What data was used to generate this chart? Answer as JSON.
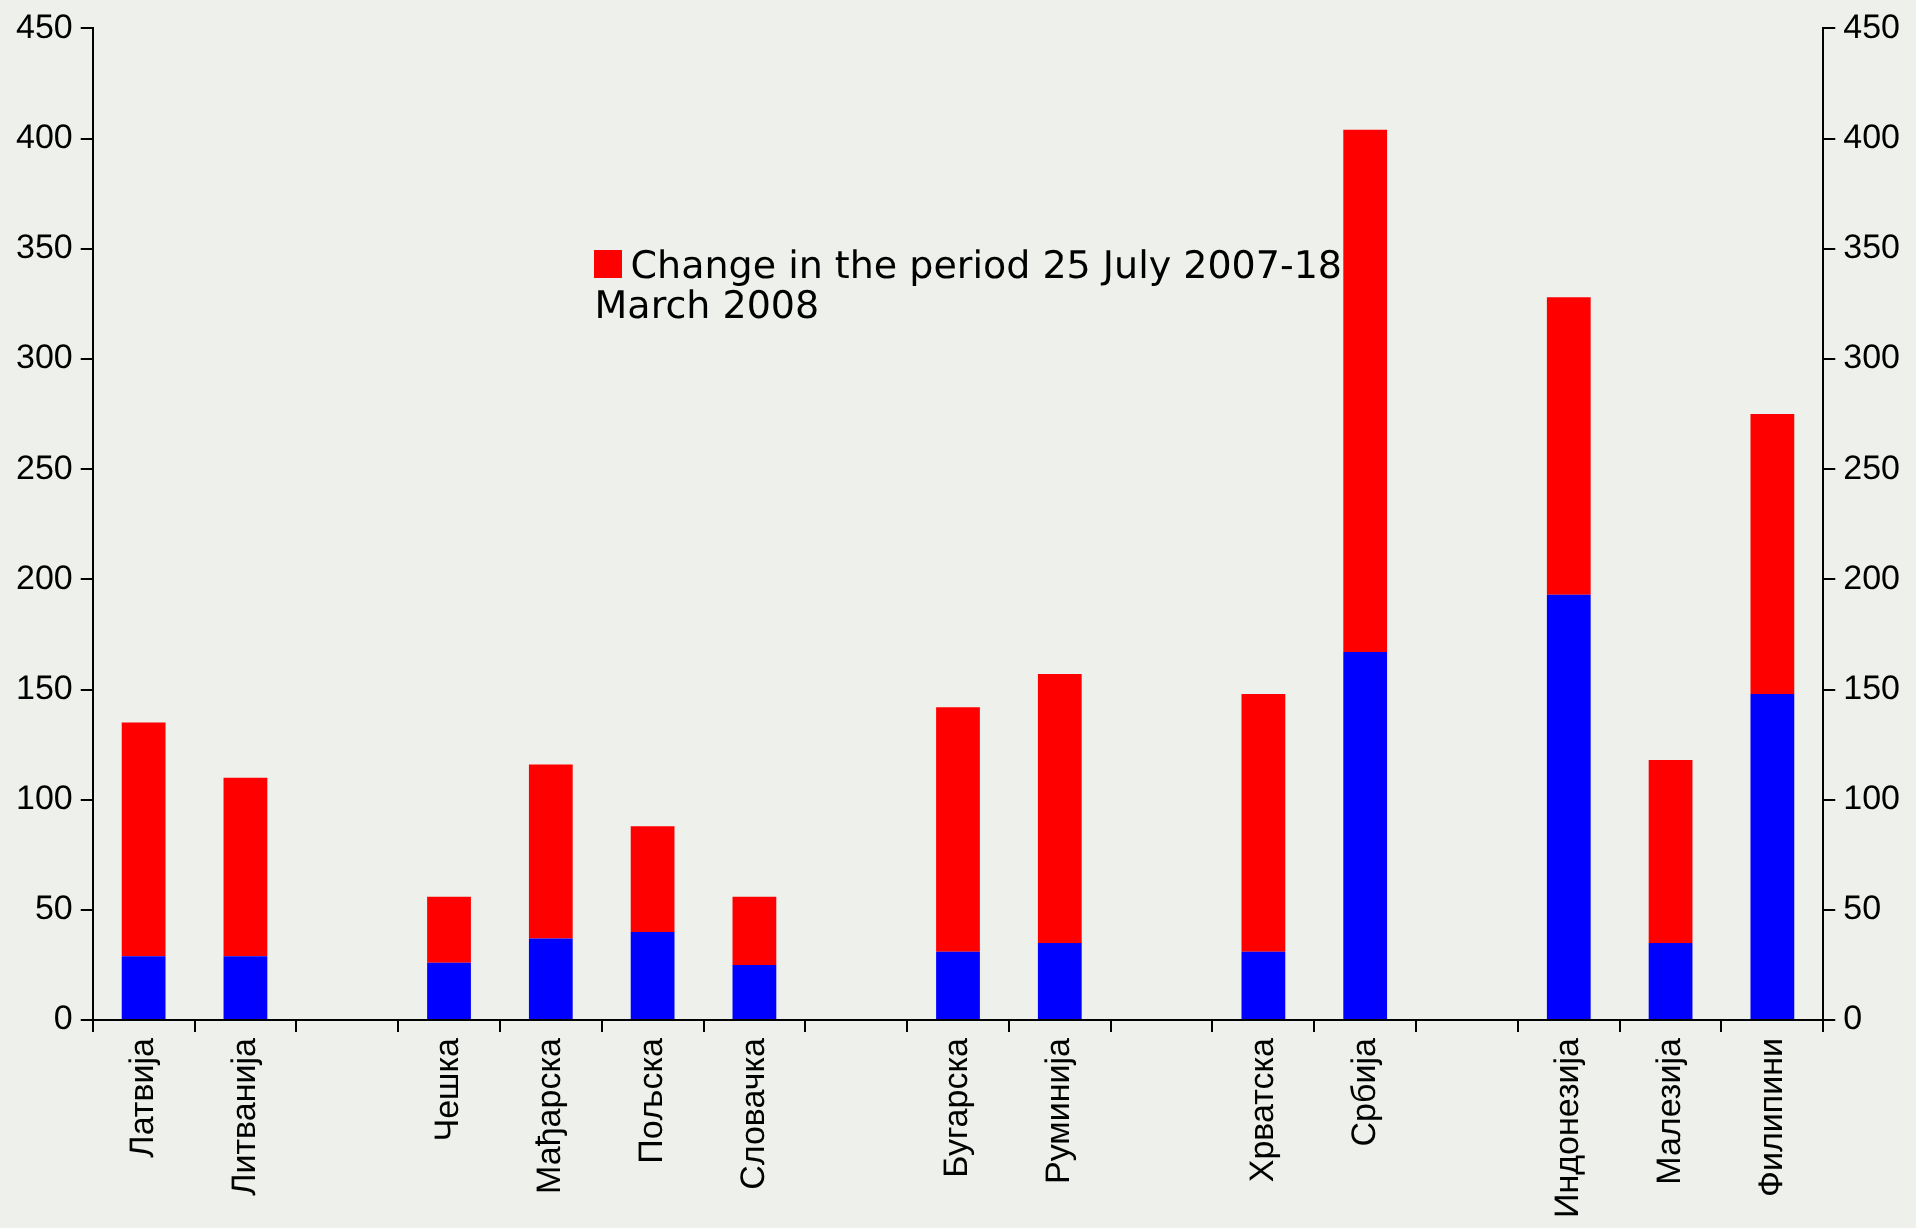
{
  "chart_data": {
    "type": "bar",
    "stacked": true,
    "categories": [
      "Латвија",
      "Литванија",
      null,
      "Чешка",
      "Мађарска",
      "Пољска",
      "Словачка",
      null,
      "Бугарска",
      "Руминија",
      null,
      "Хрватска",
      "Србија",
      null,
      "Индонезија",
      "Малезија",
      "Филипини"
    ],
    "series": [
      {
        "color": "#0000ff",
        "values": [
          29,
          29,
          null,
          26,
          37,
          40,
          25,
          null,
          31,
          35,
          null,
          31,
          167,
          null,
          193,
          35,
          148
        ]
      },
      {
        "name": "Change in the period 25 July 2007-18 March 2008",
        "color": "#ff0000",
        "values": [
          106,
          81,
          null,
          30,
          79,
          48,
          31,
          null,
          111,
          122,
          null,
          117,
          237,
          null,
          135,
          83,
          127
        ]
      }
    ],
    "ylim": [
      0,
      450
    ],
    "yticks": [
      0,
      50,
      100,
      150,
      200,
      250,
      300,
      350,
      400,
      450
    ],
    "y2lim": [
      0,
      450
    ],
    "y2ticks": [
      0,
      50,
      100,
      150,
      200,
      250,
      300,
      350,
      400,
      450
    ],
    "grid": false,
    "legend": "top"
  }
}
